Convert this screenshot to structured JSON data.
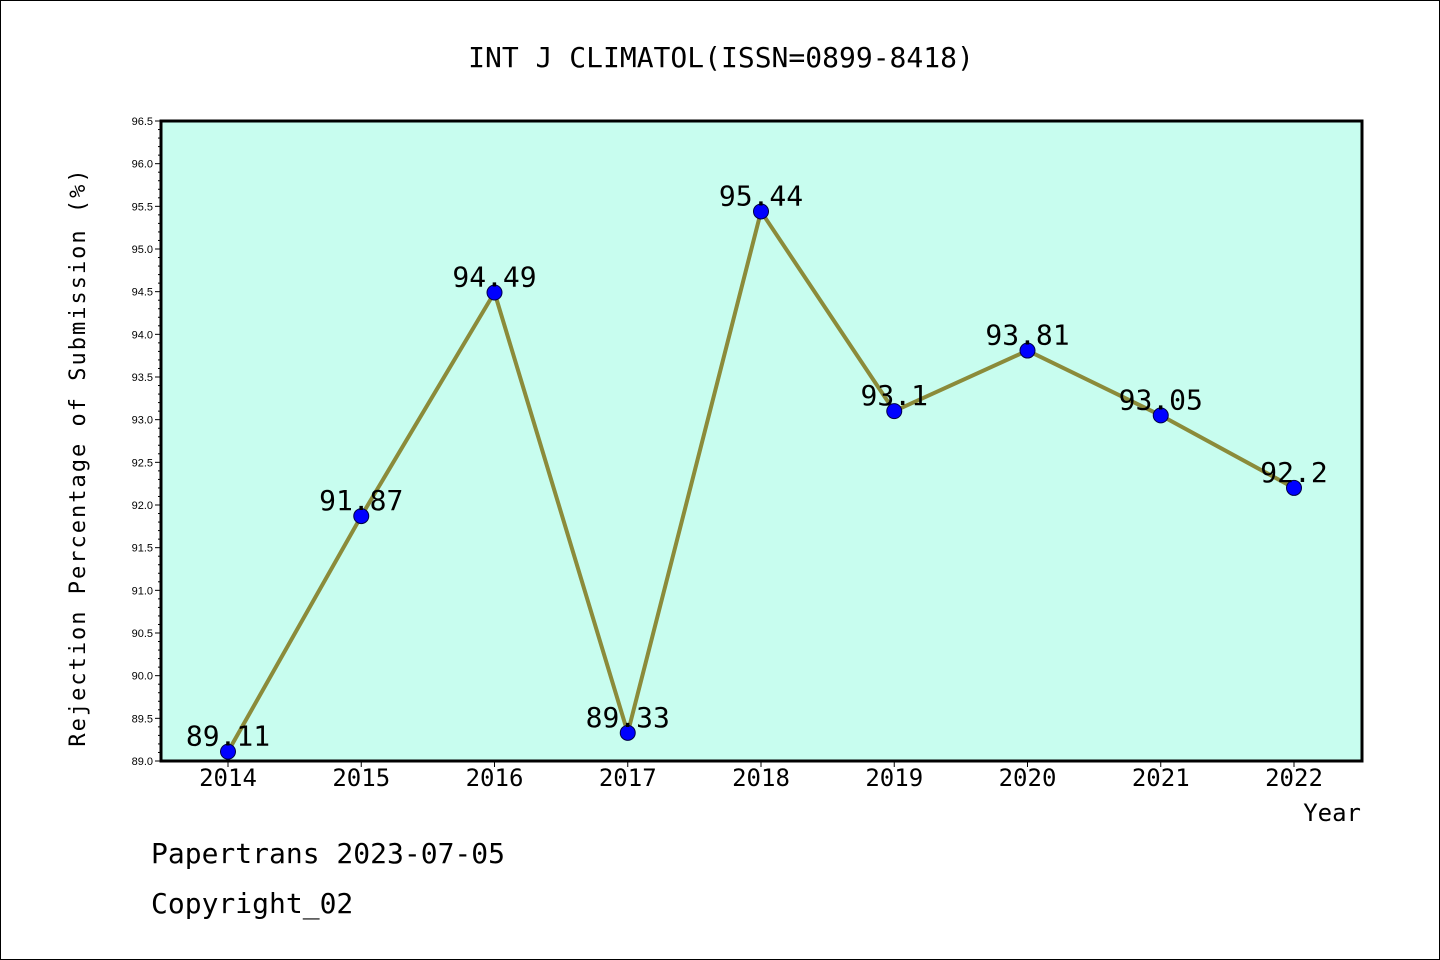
{
  "chart_data": {
    "type": "line",
    "title": "INT J CLIMATOL(ISSN=0899-8418)",
    "xlabel": "Year",
    "ylabel": "Rejection Percentage of Submission (%)",
    "categories": [
      "2014",
      "2015",
      "2016",
      "2017",
      "2018",
      "2019",
      "2020",
      "2021",
      "2022"
    ],
    "values": [
      89.11,
      91.87,
      94.49,
      89.33,
      95.44,
      93.1,
      93.81,
      93.05,
      92.2
    ],
    "data_labels": [
      "89.11",
      "91.87",
      "94.49",
      "89.33",
      "95.44",
      "93.1",
      "93.81",
      "93.05",
      "92.2"
    ],
    "ylim": [
      89.0,
      96.5
    ],
    "yticks": [
      "89.0",
      "89.5",
      "90.0",
      "90.5",
      "91.0",
      "91.5",
      "92.0",
      "92.5",
      "93.0",
      "93.5",
      "94.0",
      "94.5",
      "95.0",
      "95.5",
      "96.0",
      "96.5"
    ],
    "grid": false,
    "colors": {
      "plot_background": "#c8fdef",
      "line": "#8b8b3a",
      "marker": "#0000ff"
    }
  },
  "footer": {
    "line1": "Papertrans 2023-07-05",
    "line2": "Copyright_02"
  }
}
